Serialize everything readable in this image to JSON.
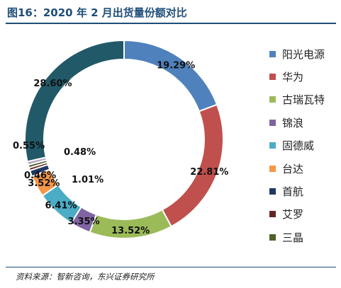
{
  "header": {
    "title": "图16：2020 年 2 月出货量份额对比"
  },
  "footer": {
    "source": "资料来源：智新咨询，东兴证券研究所"
  },
  "chart_data": {
    "type": "pie",
    "title": "",
    "donut": true,
    "legend_placement": "right",
    "slices": [
      {
        "name": "阳光电源",
        "value": 19.29,
        "label": "19.29%",
        "color": "#4f81bd"
      },
      {
        "name": "华为",
        "value": 22.81,
        "label": "22.81%",
        "color": "#c0504d"
      },
      {
        "name": "古瑞瓦特",
        "value": 13.52,
        "label": "13.52%",
        "color": "#9bbb59"
      },
      {
        "name": "锦浪",
        "value": 3.35,
        "label": "3.35%",
        "color": "#8064a2"
      },
      {
        "name": "固德威",
        "value": 6.41,
        "label": "6.41%",
        "color": "#4bacc6"
      },
      {
        "name": "台达",
        "value": 3.52,
        "label": "3.52%",
        "color": "#f79646"
      },
      {
        "name": "首航",
        "value": 1.01,
        "label": "1.01%",
        "color": "#1f3864"
      },
      {
        "name": "艾罗",
        "value": 0.46,
        "label": "0.46%",
        "color": "#632523"
      },
      {
        "name": "三晶",
        "value": 0.48,
        "label": "0.48%",
        "color": "#4f6228"
      },
      {
        "name": "",
        "value": 0.55,
        "label": "0.55%",
        "color": "#b3a2c7"
      },
      {
        "name": "",
        "value": 28.6,
        "label": "28.60%",
        "color": "#215968"
      }
    ]
  }
}
